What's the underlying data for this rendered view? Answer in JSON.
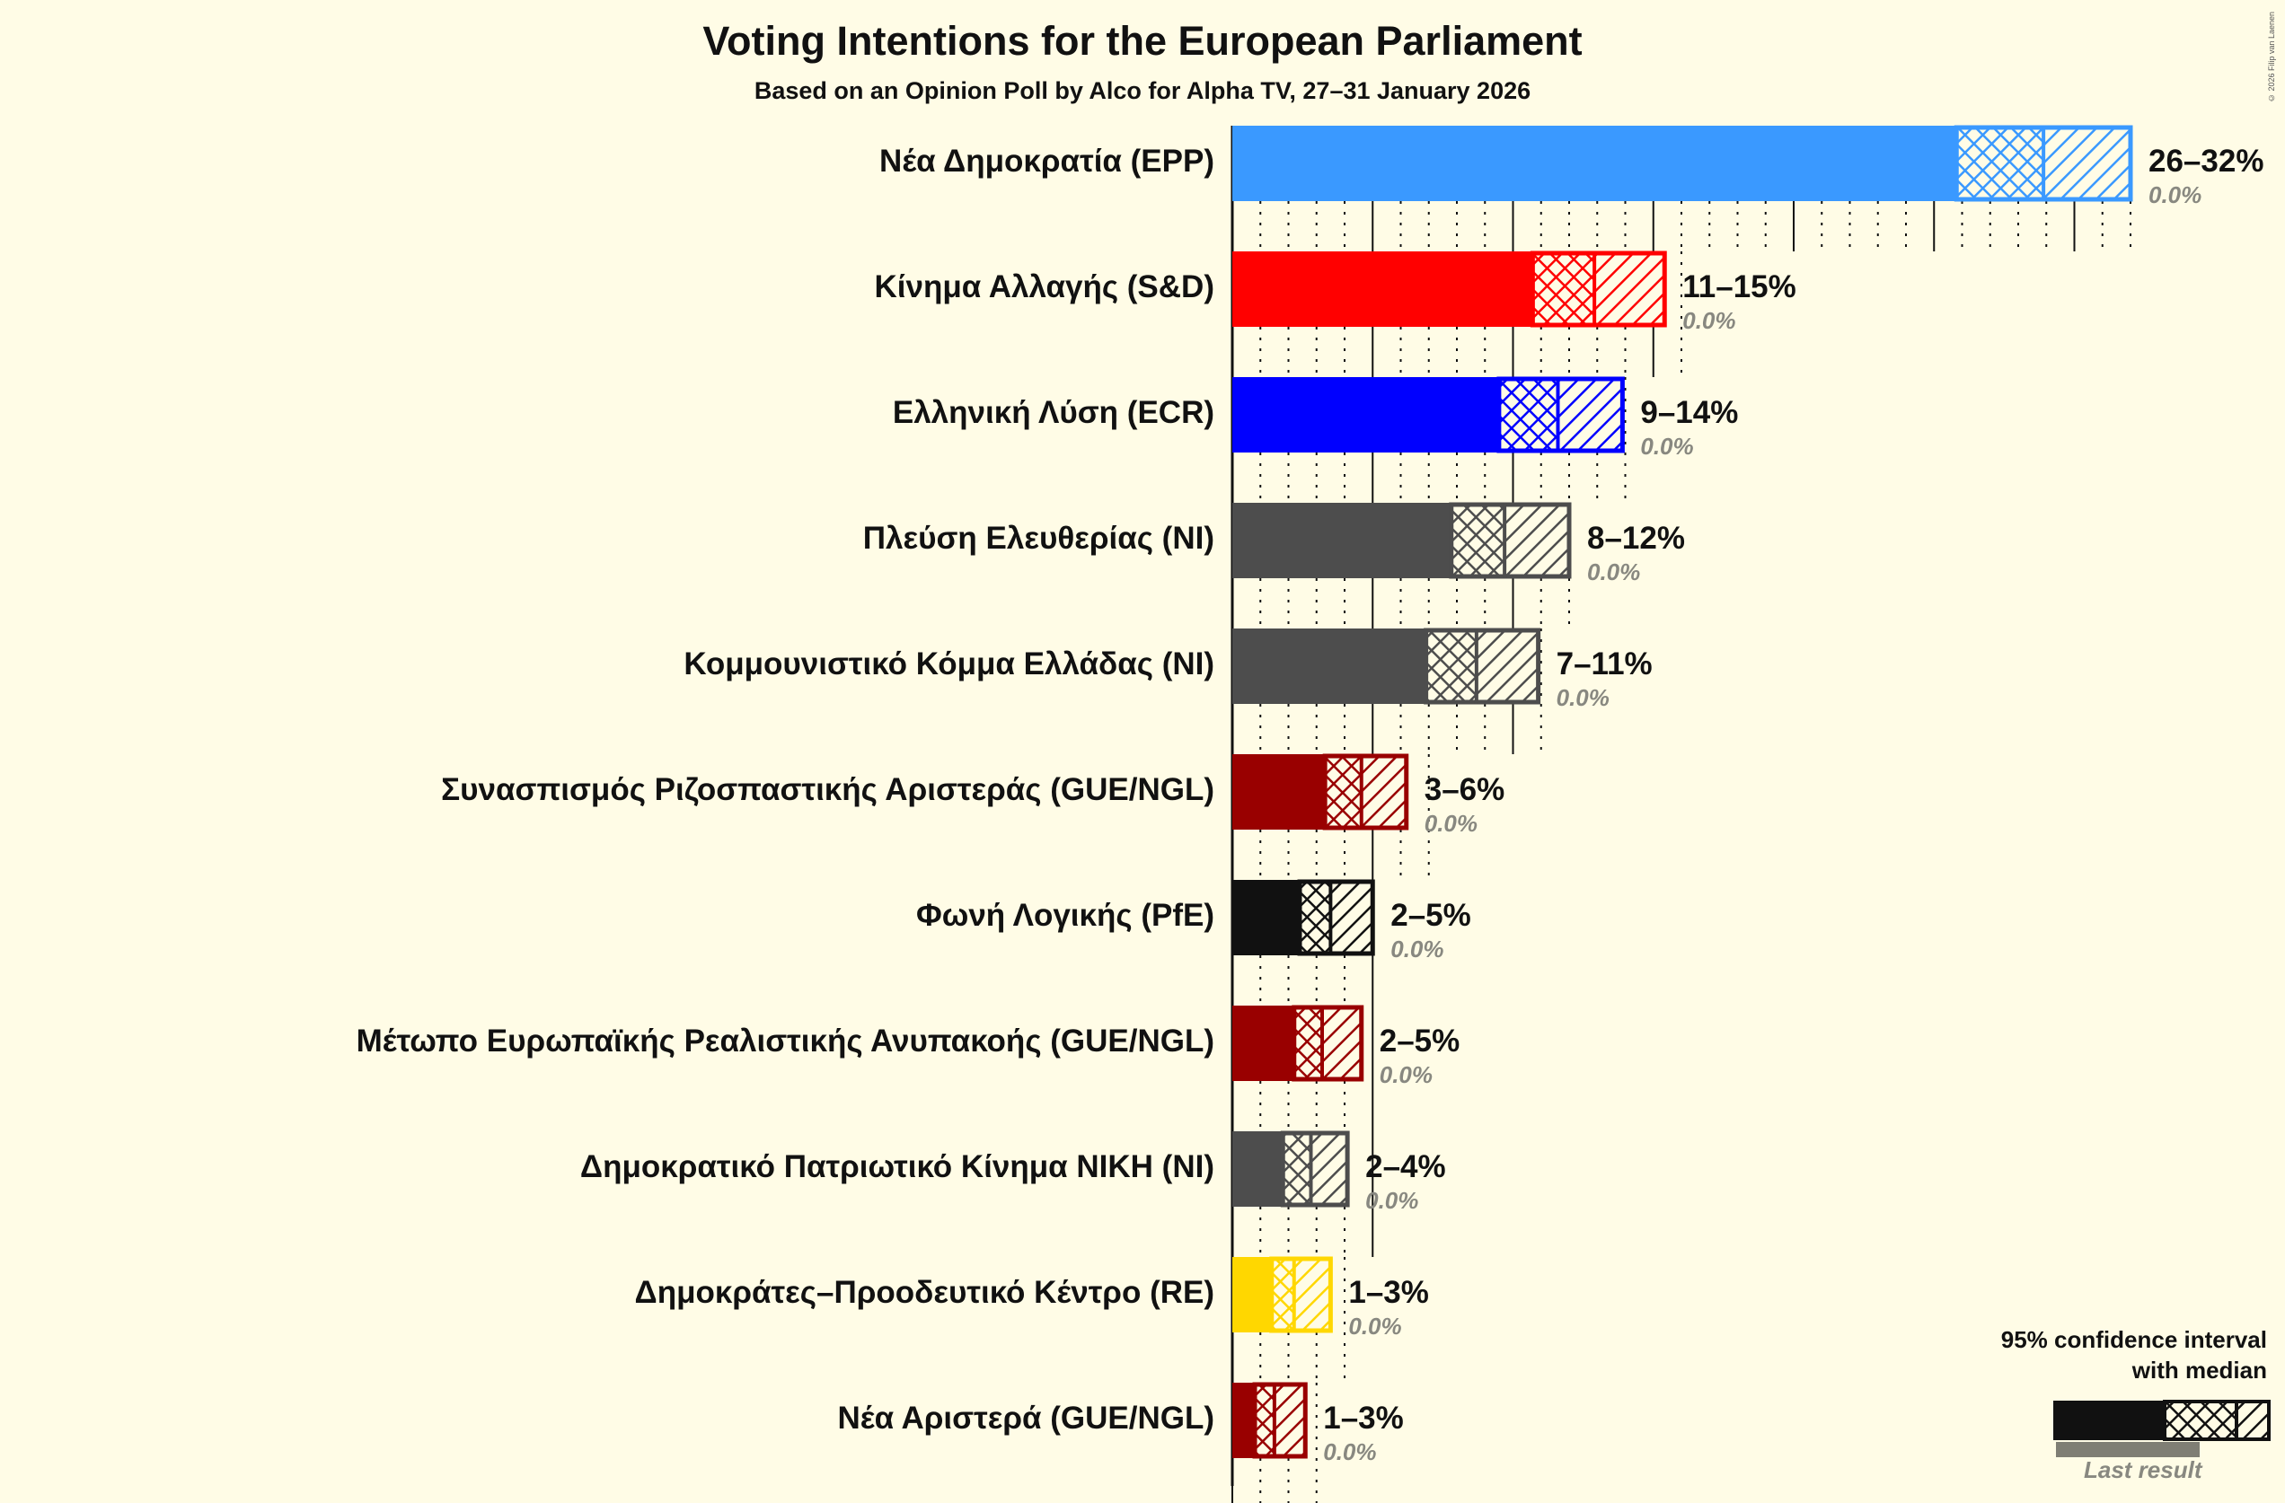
{
  "header": {
    "title": "Voting Intentions for the European Parliament",
    "subtitle": "Based on an Opinion Poll by Alco for Alpha TV, 27–31 January 2026",
    "copyright": "© 2026 Filip van Laenen"
  },
  "legend": {
    "title_line1": "95% confidence interval",
    "title_line2": "with median",
    "last_result": "Last result"
  },
  "chart_data": {
    "type": "bar",
    "orientation": "horizontal",
    "title": "Voting Intentions for the European Parliament",
    "subtitle": "Based on an Opinion Poll by Alco for Alpha TV, 27–31 January 2026",
    "xlabel": "",
    "ylabel": "",
    "xlim": [
      0,
      32
    ],
    "grid": {
      "major_step": 5,
      "minor_step": 1
    },
    "legend_position": "bottom-right",
    "categories": [
      "Νέα Δημοκρατία (EPP)",
      "Κίνημα Αλλαγής (S&D)",
      "Ελληνική Λύση (ECR)",
      "Πλεύση Ελευθερίας (NI)",
      "Κομμουνιστικό Κόμμα Ελλάδας (NI)",
      "Συνασπισμός Ριζοσπαστικής Αριστεράς (GUE/NGL)",
      "Φωνή Λογικής (PfE)",
      "Μέτωπο Ευρωπαϊκής Ρεαλιστικής Ανυπακοής (GUE/NGL)",
      "Δημοκρατικό Πατριωτικό Κίνημα ΝΙΚΗ (NI)",
      "Δημοκράτες–Προοδευτικό Κέντρο (RE)",
      "Νέα Αριστερά (GUE/NGL)"
    ],
    "series": [
      {
        "name": "CI low (95%)",
        "values": [
          25.8,
          10.7,
          9.5,
          7.8,
          6.9,
          3.3,
          2.4,
          2.2,
          1.8,
          1.4,
          0.8
        ]
      },
      {
        "name": "Median",
        "values": [
          28.9,
          12.9,
          11.6,
          9.7,
          8.7,
          4.6,
          3.5,
          3.2,
          2.8,
          2.2,
          1.5
        ]
      },
      {
        "name": "CI high (95%)",
        "values": [
          32.0,
          15.4,
          13.9,
          12.0,
          10.9,
          6.2,
          5.0,
          4.6,
          4.1,
          3.5,
          2.6
        ]
      },
      {
        "name": "Last result",
        "values": [
          0.0,
          0.0,
          0.0,
          0.0,
          0.0,
          0.0,
          0.0,
          0.0,
          0.0,
          0.0,
          0.0
        ]
      }
    ],
    "range_labels": [
      "26–32%",
      "11–15%",
      "9–14%",
      "8–12%",
      "7–11%",
      "3–6%",
      "2–5%",
      "2–5%",
      "2–4%",
      "1–3%",
      "1–3%"
    ],
    "last_labels": [
      "0.0%",
      "0.0%",
      "0.0%",
      "0.0%",
      "0.0%",
      "0.0%",
      "0.0%",
      "0.0%",
      "0.0%",
      "0.0%",
      "0.0%"
    ],
    "colors": [
      "#3A99FF",
      "#FF0000",
      "#0000FF",
      "#4D4D4D",
      "#4D4D4D",
      "#990000",
      "#111111",
      "#990000",
      "#4D4D4D",
      "#FFD700",
      "#990000"
    ]
  }
}
